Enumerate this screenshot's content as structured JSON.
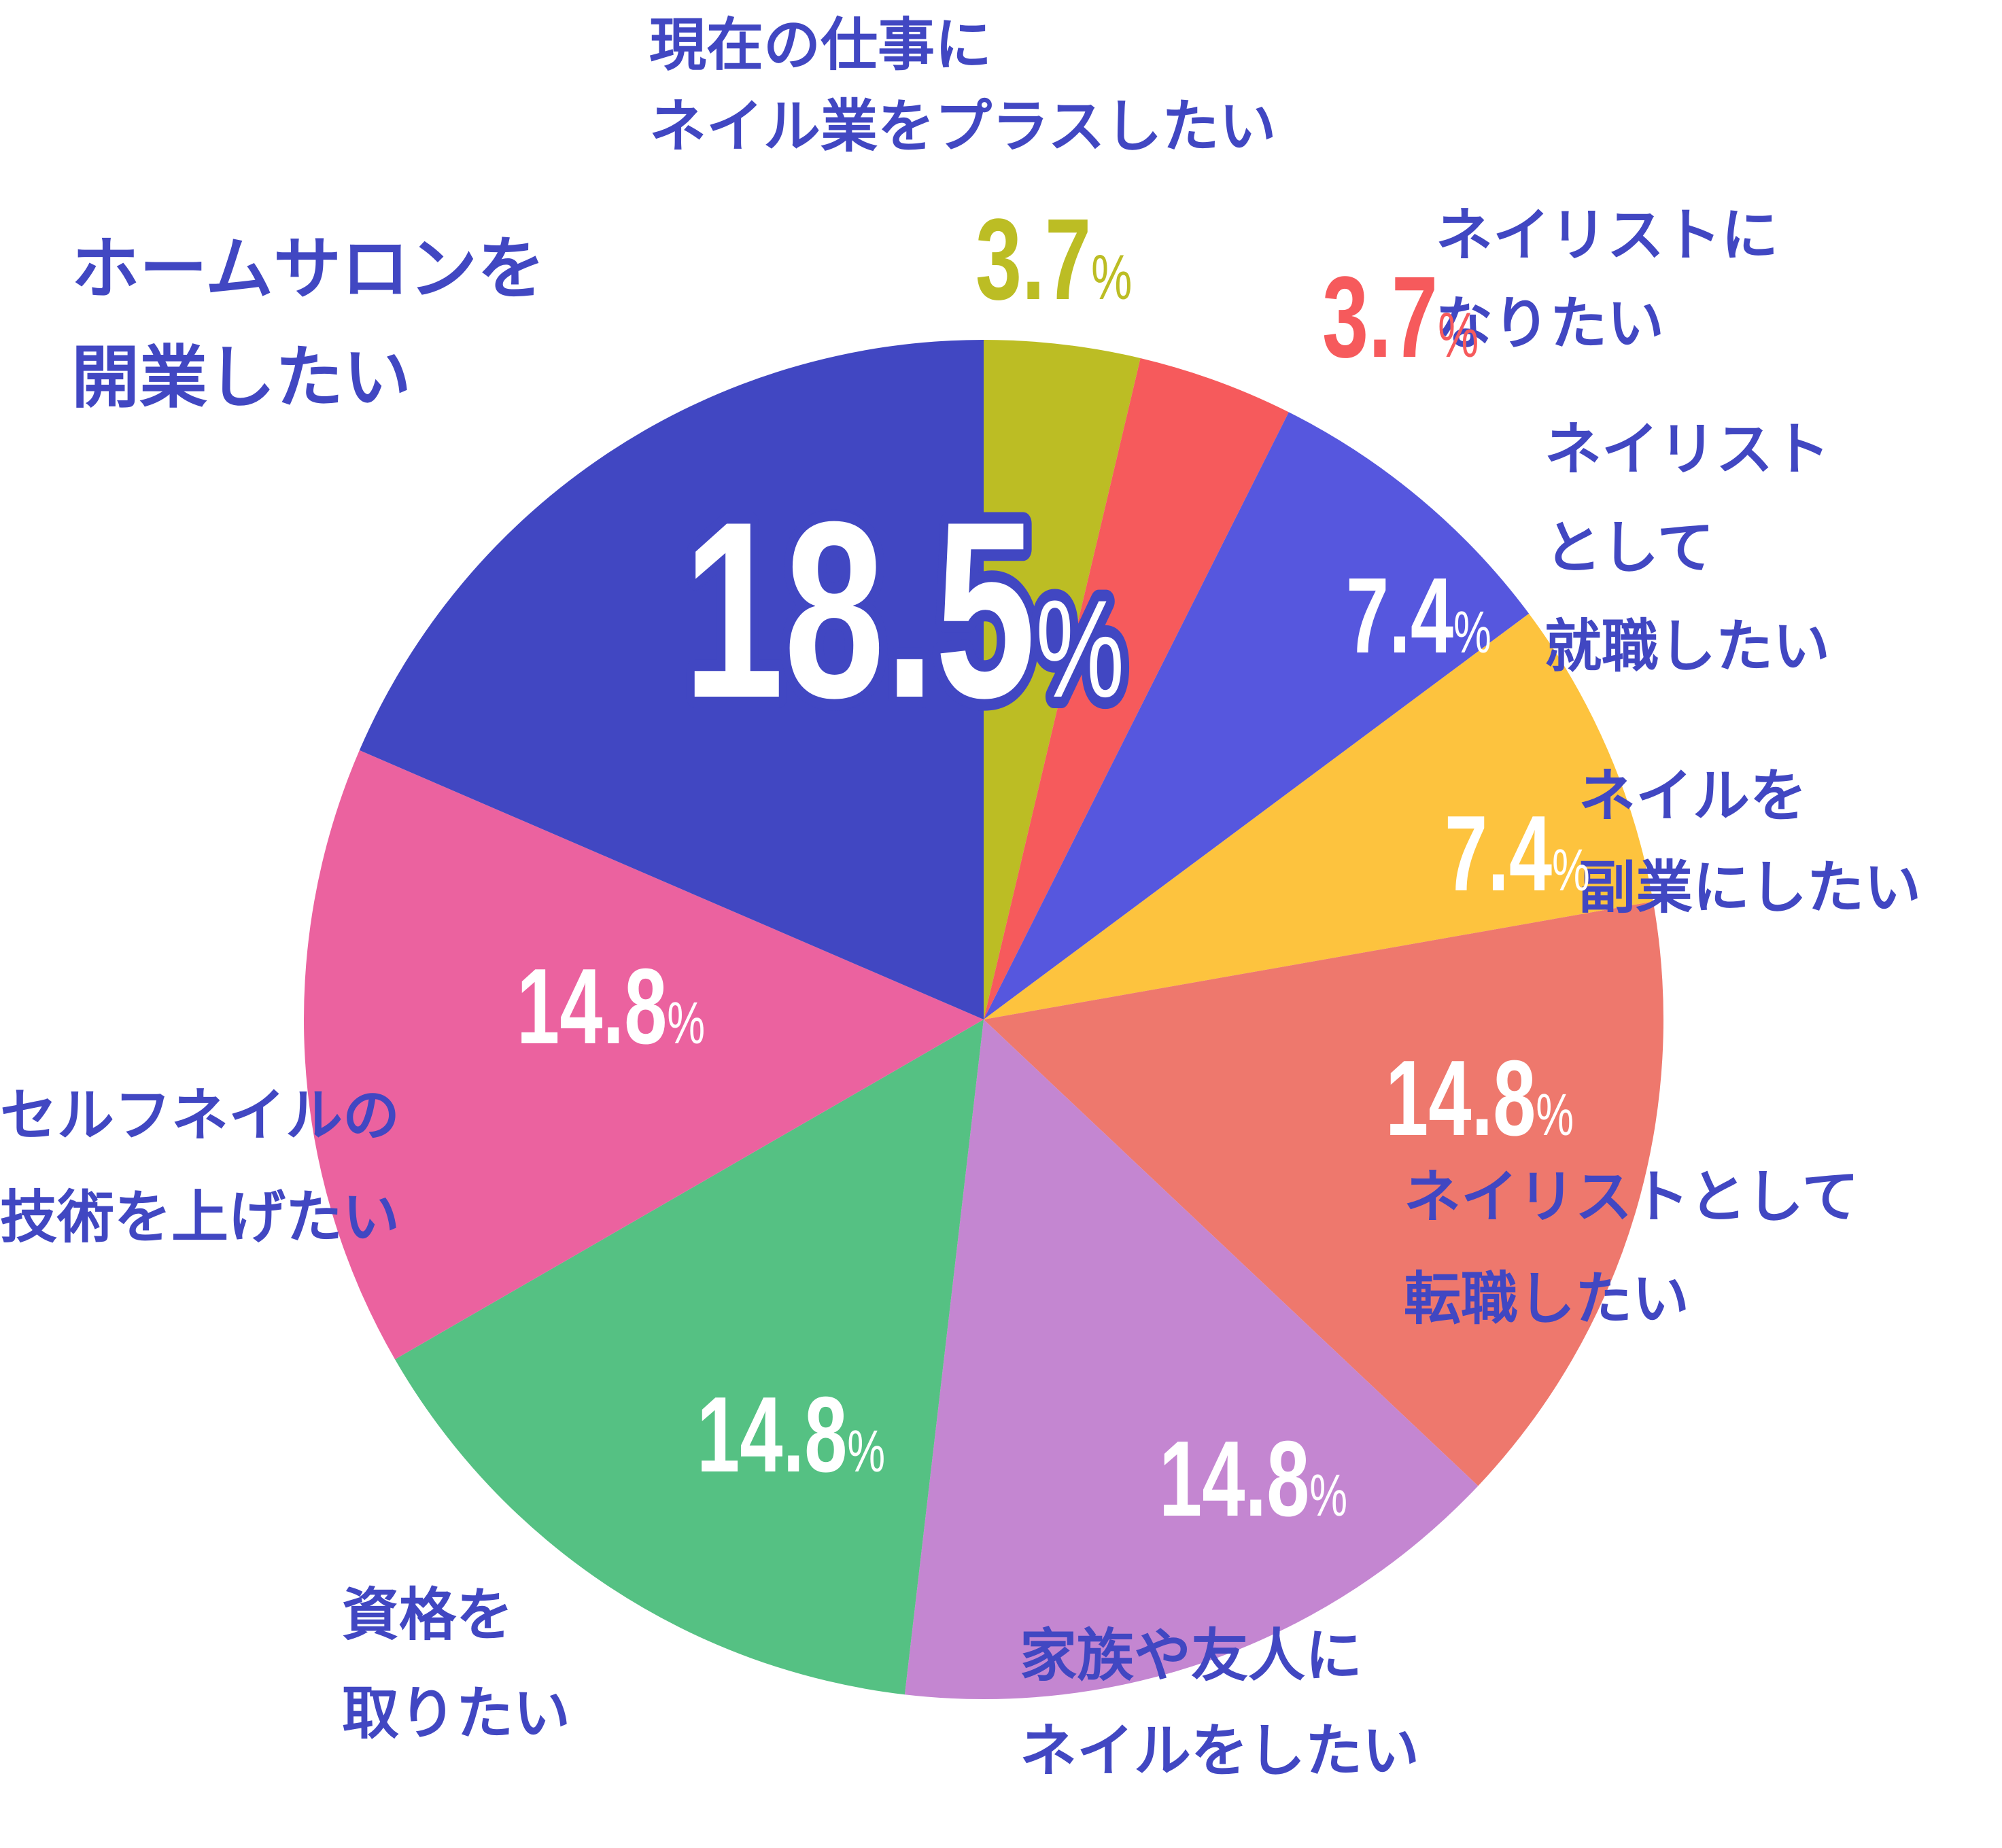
{
  "chart_data": {
    "type": "pie",
    "slices": [
      {
        "label_lines": [
          "現在の仕事に",
          "ネイル業をプラスしたい"
        ],
        "value": 3.7,
        "display": "3.7",
        "color": "#bcbd24",
        "text_color": "#bcbd24"
      },
      {
        "label_lines": [
          "ネイリストに",
          "なりたい"
        ],
        "value": 3.7,
        "display": "3.7",
        "color": "#f65a5c",
        "text_color": "#f65a5c"
      },
      {
        "label_lines": [
          "ネイリスト",
          "として",
          "就職したい"
        ],
        "value": 7.4,
        "display": "7.4",
        "color": "#5657de",
        "text_color": "#ffffff"
      },
      {
        "label_lines": [
          "ネイルを",
          "副業にしたい"
        ],
        "value": 7.4,
        "display": "7.4",
        "color": "#fdc33e",
        "text_color": "#ffffff"
      },
      {
        "label_lines": [
          "ネイリストとして",
          "転職したい"
        ],
        "value": 14.8,
        "display": "14.8",
        "color": "#ee786d",
        "text_color": "#ffffff"
      },
      {
        "label_lines": [
          "家族や友人に",
          "ネイルをしたい"
        ],
        "value": 14.8,
        "display": "14.8",
        "color": "#c486d1",
        "text_color": "#ffffff"
      },
      {
        "label_lines": [
          "資格を",
          "取りたい"
        ],
        "value": 14.8,
        "display": "14.8",
        "color": "#55c183",
        "text_color": "#ffffff"
      },
      {
        "label_lines": [
          "セルフネイルの",
          "技術を上げたい"
        ],
        "value": 14.8,
        "display": "14.8",
        "color": "#eb629f",
        "text_color": "#ffffff"
      },
      {
        "label_lines": [
          "ホームサロンを",
          "開業したい"
        ],
        "value": 18.5,
        "display": "18.5",
        "color": "#4147c2",
        "text_color": "#ffffff"
      }
    ],
    "unit": "%",
    "start_angle": "12 o'clock",
    "direction": "clockwise",
    "label_color": "#4147c2",
    "legend": "none"
  }
}
